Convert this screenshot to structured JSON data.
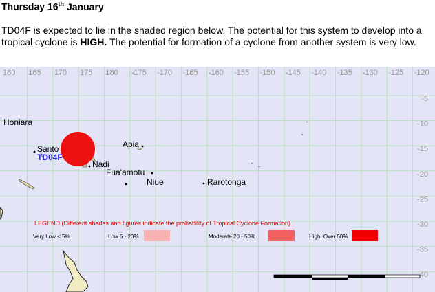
{
  "header": {
    "title_main": "Thursday 16",
    "title_suffix": "th",
    "title_end": "January"
  },
  "body": {
    "text_1": "TD04F is expected to lie in the shaded region below.  The potential for this system to develop into a tropical cyclone is ",
    "text_bold": "HIGH.",
    "text_2": " The potential for formation of a cyclone from another system is very low."
  },
  "map": {
    "longitude_labels": [
      "160",
      "165",
      "170",
      "175",
      "180",
      "-175",
      "-170",
      "-165",
      "-160",
      "-155",
      "-150",
      "-145",
      "-140",
      "-135",
      "-130",
      "-125",
      "-120"
    ],
    "latitude_labels": [
      "-5",
      "-10",
      "-15",
      "-20",
      "-25",
      "-30",
      "-35",
      "-40"
    ],
    "places": [
      "Honiara",
      "Santo",
      "Nadi",
      "Apia",
      "Fua'amotu",
      "Niue",
      "Rarotonga"
    ],
    "system_label": "TD04F",
    "legend": {
      "title": "LEGEND (Different shades and figures indicate the probability of Tropical Cyclone Formation)",
      "items": [
        "Very Low < 5%",
        "Low 5 - 20%",
        "Moderate 20 - 50%",
        "High: Over 50%"
      ]
    }
  }
}
